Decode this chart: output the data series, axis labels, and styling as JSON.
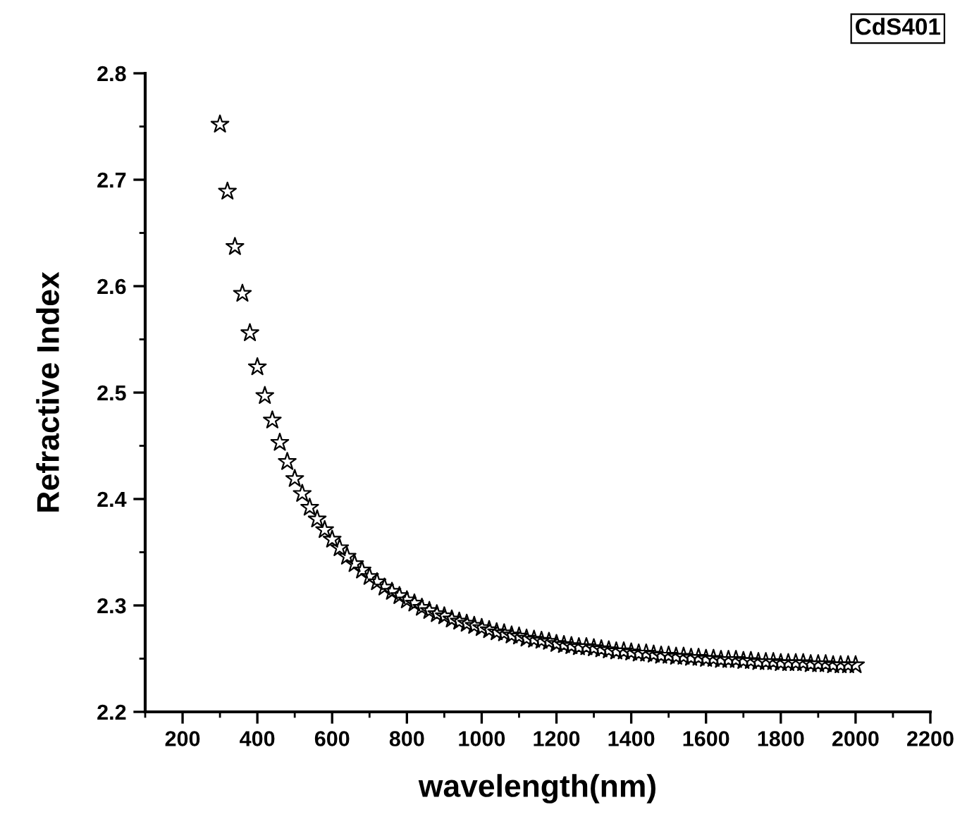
{
  "chart_data": {
    "type": "scatter",
    "xlabel": "wavelength(nm)",
    "ylabel": "Refractive Index",
    "annotations": [
      "CdS401"
    ],
    "marker": "star",
    "grid": false,
    "xlim": [
      100,
      2200
    ],
    "xticks": [
      {
        "value": 100,
        "label": null
      },
      200,
      {
        "value": 300,
        "label": null
      },
      400,
      {
        "value": 500,
        "label": null
      },
      600,
      {
        "value": 700,
        "label": null
      },
      800,
      {
        "value": 900,
        "label": null
      },
      1000,
      {
        "value": 1100,
        "label": null
      },
      1200,
      {
        "value": 1300,
        "label": null
      },
      1400,
      {
        "value": 1500,
        "label": null
      },
      1600,
      {
        "value": 1700,
        "label": null
      },
      1800,
      {
        "value": 1900,
        "label": null
      },
      2000,
      {
        "value": 2100,
        "label": null
      },
      2200
    ],
    "ylim": [
      2.2,
      2.8
    ],
    "yticks": [
      2.2,
      {
        "value": 2.25,
        "label": null
      },
      2.3,
      {
        "value": 2.35,
        "label": null
      },
      2.4,
      {
        "value": 2.45,
        "label": null
      },
      2.5,
      {
        "value": 2.55,
        "label": null
      },
      2.6,
      {
        "value": 2.65,
        "label": null
      },
      2.7,
      {
        "value": 2.75,
        "label": null
      },
      2.8
    ],
    "series": [
      {
        "color": "#000000",
        "x": [
          300,
          320,
          340,
          360,
          380,
          400,
          420,
          440,
          460,
          480,
          500,
          520,
          540,
          560,
          580,
          600,
          620,
          640,
          660,
          680,
          700,
          720,
          740,
          760,
          780,
          800,
          820,
          840,
          860,
          880,
          900,
          920,
          940,
          960,
          980,
          1000,
          1020,
          1040,
          1060,
          1080,
          1100,
          1120,
          1140,
          1160,
          1180,
          1200,
          1220,
          1240,
          1260,
          1280,
          1300,
          1320,
          1340,
          1360,
          1380,
          1400,
          1420,
          1440,
          1460,
          1480,
          1500,
          1520,
          1540,
          1560,
          1580,
          1600,
          1620,
          1640,
          1660,
          1680,
          1700,
          1720,
          1740,
          1760,
          1780,
          1800,
          1820,
          1840,
          1860,
          1880,
          1900,
          1920,
          1940,
          1960,
          1980,
          2000
        ],
        "values": [
          2.752,
          2.689,
          2.637,
          2.593,
          2.556,
          2.524,
          2.497,
          2.474,
          2.453,
          2.435,
          2.419,
          2.405,
          2.392,
          2.381,
          2.371,
          2.362,
          2.354,
          2.346,
          2.339,
          2.333,
          2.327,
          2.322,
          2.317,
          2.313,
          2.309,
          2.305,
          2.302,
          2.298,
          2.295,
          2.292,
          2.29,
          2.287,
          2.285,
          2.283,
          2.281,
          2.279,
          2.277,
          2.275,
          2.274,
          2.272,
          2.271,
          2.269,
          2.268,
          2.267,
          2.266,
          2.264,
          2.263,
          2.262,
          2.261,
          2.261,
          2.26,
          2.259,
          2.258,
          2.257,
          2.257,
          2.256,
          2.255,
          2.255,
          2.254,
          2.253,
          2.253,
          2.252,
          2.252,
          2.251,
          2.251,
          2.25,
          2.25,
          2.249,
          2.249,
          2.249,
          2.248,
          2.248,
          2.247,
          2.247,
          2.247,
          2.246,
          2.246,
          2.246,
          2.246,
          2.245,
          2.245,
          2.245,
          2.244,
          2.244,
          2.244,
          2.244
        ]
      }
    ]
  }
}
